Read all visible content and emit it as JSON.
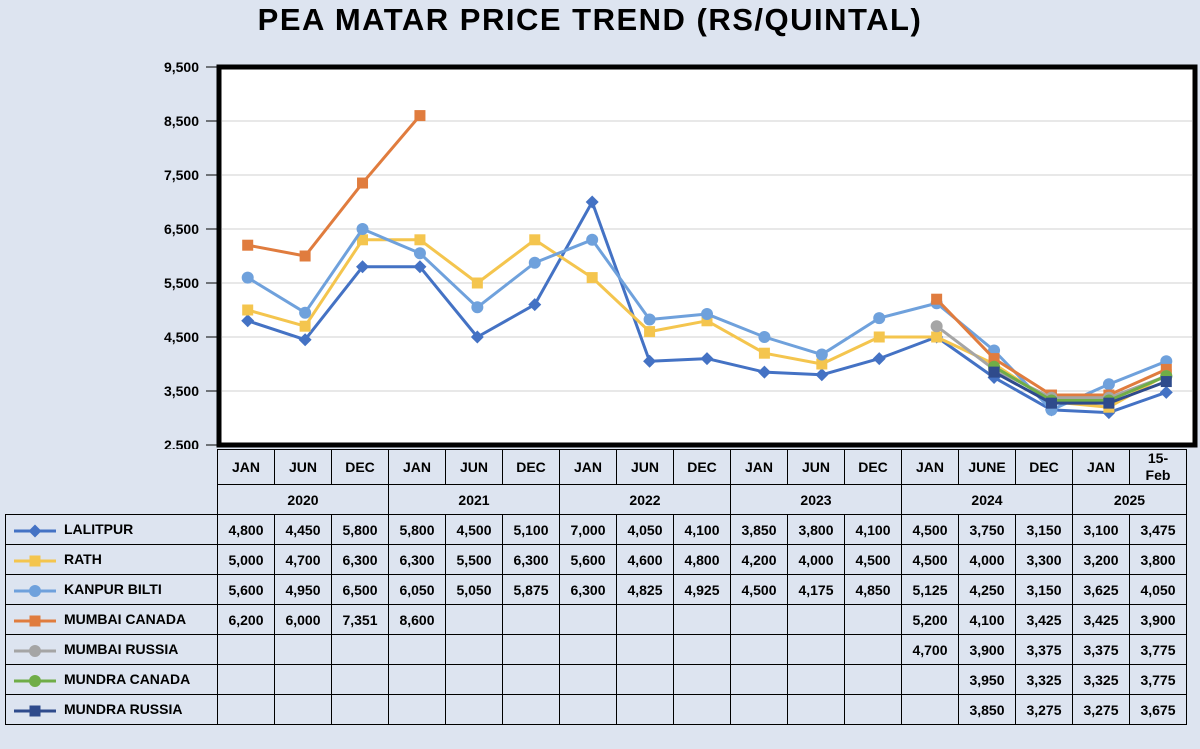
{
  "chart_data": {
    "type": "line",
    "title": "PEA MATAR PRICE TREND (RS/QUINTAL)",
    "ylim": [
      2500,
      9500
    ],
    "yticks": [
      "2,500",
      "3,500",
      "4,500",
      "5,500",
      "6,500",
      "7,500",
      "8,500",
      "9,500"
    ],
    "ytick_values": [
      2500,
      3500,
      4500,
      5500,
      6500,
      7500,
      8500,
      9500
    ],
    "grid": true,
    "categories": [
      "JAN",
      "JUN",
      "DEC",
      "JAN",
      "JUN",
      "DEC",
      "JAN",
      "JUN",
      "DEC",
      "JAN",
      "JUN",
      "DEC",
      "JAN",
      "JUNE",
      "DEC",
      "JAN",
      "15-Feb"
    ],
    "years": [
      {
        "label": "2020",
        "span": 3
      },
      {
        "label": "2021",
        "span": 3
      },
      {
        "label": "2022",
        "span": 3
      },
      {
        "label": "2023",
        "span": 3
      },
      {
        "label": "2024",
        "span": 3
      },
      {
        "label": "2025",
        "span": 2
      }
    ],
    "series": [
      {
        "name": "LALITPUR",
        "color": "#4472c4",
        "marker": "diamond",
        "values": [
          4800,
          4450,
          5800,
          5800,
          4500,
          5100,
          7000,
          4050,
          4100,
          3850,
          3800,
          4100,
          4500,
          3750,
          3150,
          3100,
          3475
        ]
      },
      {
        "name": "RATH",
        "color": "#f4c54e",
        "marker": "square",
        "values": [
          5000,
          4700,
          6300,
          6300,
          5500,
          6300,
          5600,
          4600,
          4800,
          4200,
          4000,
          4500,
          4500,
          4000,
          3300,
          3200,
          3800
        ]
      },
      {
        "name": "KANPUR BILTI",
        "color": "#6fa1dc",
        "marker": "circle",
        "values": [
          5600,
          4950,
          6500,
          6050,
          5050,
          5875,
          6300,
          4825,
          4925,
          4500,
          4175,
          4850,
          5125,
          4250,
          3150,
          3625,
          4050
        ]
      },
      {
        "name": "MUMBAI CANADA",
        "color": "#e07c3e",
        "marker": "square",
        "values": [
          6200,
          6000,
          7351,
          8600,
          null,
          null,
          null,
          null,
          null,
          null,
          null,
          null,
          5200,
          4100,
          3425,
          3425,
          3900
        ]
      },
      {
        "name": "MUMBAI RUSSIA",
        "color": "#a5a5a5",
        "marker": "circle",
        "values": [
          null,
          null,
          null,
          null,
          null,
          null,
          null,
          null,
          null,
          null,
          null,
          null,
          4700,
          3900,
          3375,
          3375,
          3775
        ]
      },
      {
        "name": "MUNDRA CANADA",
        "color": "#70ad47",
        "marker": "circle",
        "values": [
          null,
          null,
          null,
          null,
          null,
          null,
          null,
          null,
          null,
          null,
          null,
          null,
          null,
          3950,
          3325,
          3325,
          3775
        ]
      },
      {
        "name": "MUNDRA RUSSIA",
        "color": "#2f4b8c",
        "marker": "square",
        "values": [
          null,
          null,
          null,
          null,
          null,
          null,
          null,
          null,
          null,
          null,
          null,
          null,
          null,
          3850,
          3275,
          3275,
          3675
        ]
      }
    ]
  }
}
